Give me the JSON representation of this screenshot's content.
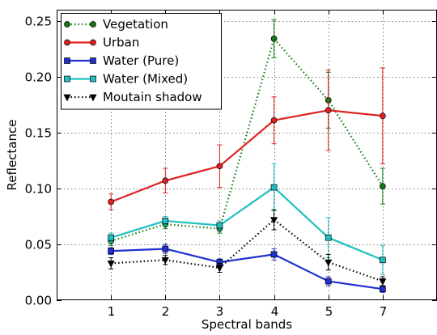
{
  "chart_data": {
    "type": "line",
    "title": "",
    "xlabel": "Spectral bands",
    "ylabel": "Reflectance",
    "categories": [
      "1",
      "2",
      "3",
      "4",
      "5",
      "7"
    ],
    "x": [
      1,
      2,
      3,
      4,
      5,
      6
    ],
    "xlim": [
      0,
      7
    ],
    "ylim": [
      0,
      0.26
    ],
    "yticks": [
      "0.00",
      "0.05",
      "0.10",
      "0.15",
      "0.20",
      "0.25"
    ],
    "ytick_values": [
      0,
      0.05,
      0.1,
      0.15,
      0.2,
      0.25
    ],
    "grid": true,
    "legend_position": "top-left",
    "series": [
      {
        "name": "Vegetation",
        "color": "#117a11",
        "linestyle": "dotted",
        "marker": "circle",
        "values": [
          0.053,
          0.068,
          0.064,
          0.234,
          0.179,
          0.102
        ],
        "errors": [
          0.004,
          0.004,
          0.004,
          0.017,
          0.025,
          0.016
        ]
      },
      {
        "name": "Urban",
        "color": "#e02020",
        "linestyle": "solid",
        "marker": "circle",
        "values": [
          0.088,
          0.107,
          0.12,
          0.161,
          0.17,
          0.165
        ],
        "errors": [
          0.007,
          0.011,
          0.019,
          0.021,
          0.036,
          0.043
        ]
      },
      {
        "name": "Water (Pure)",
        "color": "#1f2fd0",
        "linestyle": "solid",
        "marker": "square",
        "values": [
          0.044,
          0.046,
          0.034,
          0.041,
          0.017,
          0.01
        ],
        "errors": [
          0.003,
          0.004,
          0.003,
          0.005,
          0.004,
          0.003
        ]
      },
      {
        "name": "Water (Mixed)",
        "color": "#1fbfbf",
        "linestyle": "solid",
        "marker": "square",
        "values": [
          0.056,
          0.071,
          0.067,
          0.101,
          0.056,
          0.036
        ],
        "errors": [
          0.004,
          0.004,
          0.004,
          0.021,
          0.018,
          0.013
        ]
      },
      {
        "name": "Moutain shadow",
        "color": "#000000",
        "linestyle": "dotted",
        "marker": "triangle-down",
        "values": [
          0.033,
          0.036,
          0.029,
          0.072,
          0.034,
          0.017
        ],
        "errors": [
          0.005,
          0.004,
          0.004,
          0.009,
          0.007,
          0.004
        ]
      }
    ]
  }
}
